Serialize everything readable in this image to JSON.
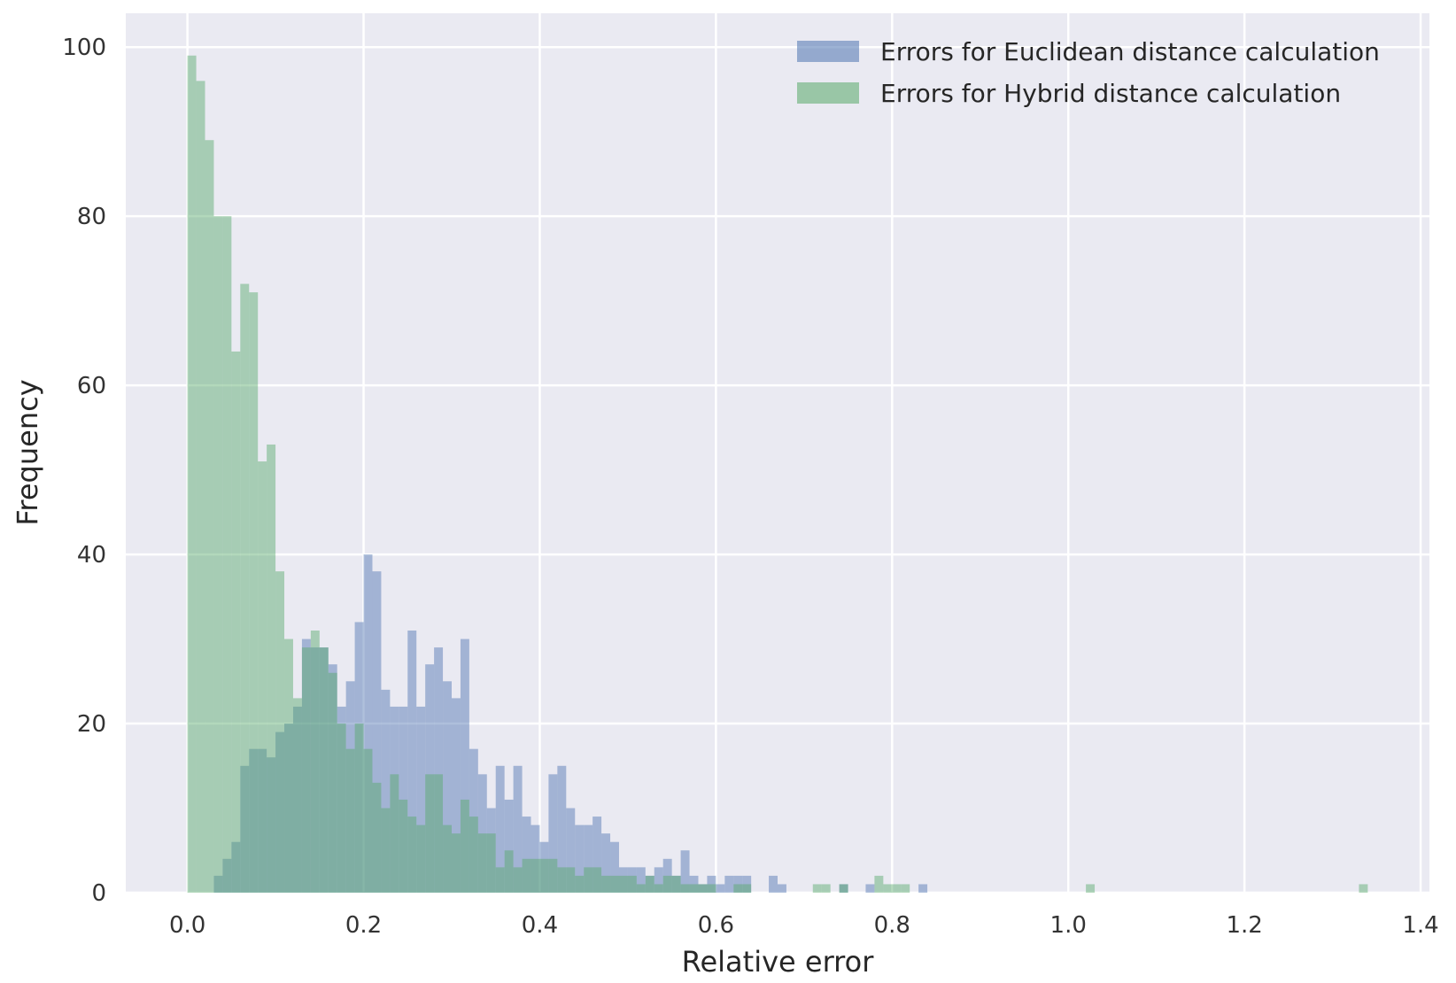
{
  "chart_data": {
    "type": "bar",
    "subtype": "overlapping histogram",
    "title": "",
    "xlabel": "Relative error",
    "ylabel": "Frequency",
    "xlim": [
      -0.07,
      1.41
    ],
    "ylim": [
      0,
      104
    ],
    "xticks": [
      0.0,
      0.2,
      0.4,
      0.6,
      0.8,
      1.0,
      1.2,
      1.4
    ],
    "xtick_labels": [
      "0.0",
      "0.2",
      "0.4",
      "0.6",
      "0.8",
      "1.0",
      "1.2",
      "1.4"
    ],
    "yticks": [
      0,
      20,
      40,
      60,
      80,
      100
    ],
    "ytick_labels": [
      "0",
      "20",
      "40",
      "60",
      "80",
      "100"
    ],
    "grid": true,
    "legend_position": "top-right",
    "background": "#EAEAF2",
    "bin_width": 0.01,
    "series": [
      {
        "name": "Errors for Euclidean distance calculation",
        "color": "#4C72B0",
        "opacity": 0.45,
        "x": [
          0.0,
          0.01,
          0.02,
          0.03,
          0.04,
          0.05,
          0.06,
          0.07,
          0.08,
          0.09,
          0.1,
          0.11,
          0.12,
          0.13,
          0.14,
          0.15,
          0.16,
          0.17,
          0.18,
          0.19,
          0.2,
          0.21,
          0.22,
          0.23,
          0.24,
          0.25,
          0.26,
          0.27,
          0.28,
          0.29,
          0.3,
          0.31,
          0.32,
          0.33,
          0.34,
          0.35,
          0.36,
          0.37,
          0.38,
          0.39,
          0.4,
          0.41,
          0.42,
          0.43,
          0.44,
          0.45,
          0.46,
          0.47,
          0.48,
          0.49,
          0.5,
          0.51,
          0.52,
          0.53,
          0.54,
          0.55,
          0.56,
          0.57,
          0.58,
          0.59,
          0.6,
          0.61,
          0.62,
          0.63,
          0.66,
          0.67,
          0.74,
          0.77,
          0.83
        ],
        "values": [
          0,
          0,
          0,
          2,
          4,
          6,
          15,
          17,
          17,
          16,
          19,
          20,
          22,
          30,
          29,
          29,
          27,
          22,
          25,
          32,
          40,
          38,
          24,
          22,
          22,
          31,
          22,
          27,
          29,
          25,
          23,
          30,
          17,
          14,
          10,
          15,
          11,
          15,
          9,
          8,
          6,
          14,
          15,
          10,
          8,
          8,
          9,
          7,
          6,
          3,
          3,
          3,
          2,
          3,
          4,
          2,
          5,
          2,
          1,
          2,
          1,
          2,
          2,
          2,
          2,
          1,
          1,
          1,
          1
        ]
      },
      {
        "name": "Errors for Hybrid distance calculation",
        "color": "#55A868",
        "opacity": 0.45,
        "x": [
          0.0,
          0.01,
          0.02,
          0.03,
          0.04,
          0.05,
          0.06,
          0.07,
          0.08,
          0.09,
          0.1,
          0.11,
          0.12,
          0.13,
          0.14,
          0.15,
          0.16,
          0.17,
          0.18,
          0.19,
          0.2,
          0.21,
          0.22,
          0.23,
          0.24,
          0.25,
          0.26,
          0.27,
          0.28,
          0.29,
          0.3,
          0.31,
          0.32,
          0.33,
          0.34,
          0.35,
          0.36,
          0.37,
          0.38,
          0.39,
          0.4,
          0.41,
          0.42,
          0.43,
          0.44,
          0.45,
          0.46,
          0.47,
          0.48,
          0.49,
          0.5,
          0.51,
          0.52,
          0.53,
          0.54,
          0.55,
          0.56,
          0.57,
          0.58,
          0.59,
          0.62,
          0.63,
          0.71,
          0.72,
          0.74,
          0.78,
          0.79,
          0.8,
          0.81,
          1.02,
          1.33
        ],
        "values": [
          99,
          96,
          89,
          80,
          80,
          64,
          72,
          71,
          51,
          53,
          38,
          30,
          23,
          29,
          31,
          29,
          26,
          20,
          17,
          20,
          17,
          13,
          10,
          14,
          11,
          9,
          8,
          14,
          14,
          8,
          7,
          11,
          9,
          7,
          7,
          3,
          5,
          3,
          4,
          4,
          4,
          4,
          3,
          3,
          2,
          3,
          3,
          2,
          2,
          2,
          2,
          1,
          2,
          1,
          2,
          2,
          1,
          1,
          1,
          1,
          1,
          1,
          1,
          1,
          1,
          2,
          1,
          1,
          1,
          1,
          1
        ]
      }
    ]
  }
}
